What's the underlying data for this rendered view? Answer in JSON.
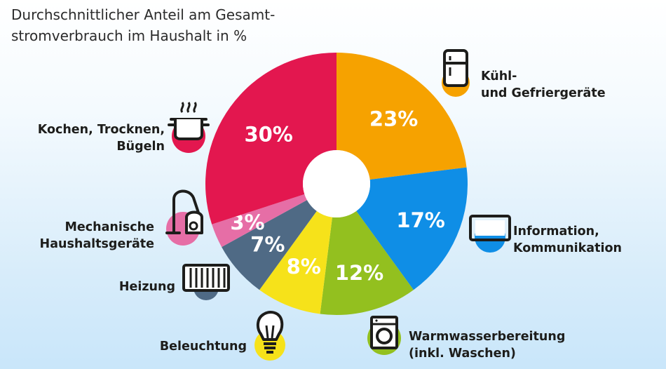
{
  "title_line1": "Durchschnittlicher Anteil am Gesamt-",
  "title_line2": "stromverbrauch im Haushalt in %",
  "colors": {
    "kuehl": "#f6a200",
    "info": "#0f8ee6",
    "warmwasser": "#93c01f",
    "beleuchtung": "#f6e21a",
    "heizung": "#4f6a85",
    "mechanisch": "#e66ea6",
    "kochen": "#e3174f"
  },
  "chart_data": {
    "type": "pie",
    "title": "Durchschnittlicher Anteil am Gesamtstromverbrauch im Haushalt in %",
    "unit": "%",
    "slices": [
      {
        "key": "kuehl",
        "label_lines": [
          "Kühl-",
          "und Gefriergeräte"
        ],
        "value": 23,
        "value_label": "23%",
        "icon": "fridge-icon"
      },
      {
        "key": "info",
        "label_lines": [
          "Information,",
          "Kommunikation"
        ],
        "value": 17,
        "value_label": "17%",
        "icon": "monitor-icon"
      },
      {
        "key": "warmwasser",
        "label_lines": [
          "Warmwasserbereitung",
          "(inkl. Waschen)"
        ],
        "value": 12,
        "value_label": "12%",
        "icon": "washing-machine-icon"
      },
      {
        "key": "beleuchtung",
        "label_lines": [
          "Beleuchtung"
        ],
        "value": 8,
        "value_label": "8%",
        "icon": "light-bulb-icon"
      },
      {
        "key": "heizung",
        "label_lines": [
          "Heizung"
        ],
        "value": 7,
        "value_label": "7%",
        "icon": "radiator-icon"
      },
      {
        "key": "mechanisch",
        "label_lines": [
          "Mechanische",
          "Haushaltsgeräte"
        ],
        "value": 3,
        "value_label": "3%",
        "icon": "vacuum-cleaner-icon"
      },
      {
        "key": "kochen",
        "label_lines": [
          "Kochen, Trocknen,",
          "Bügeln"
        ],
        "value": 30,
        "value_label": "30%",
        "icon": "cooking-pot-icon"
      }
    ]
  }
}
